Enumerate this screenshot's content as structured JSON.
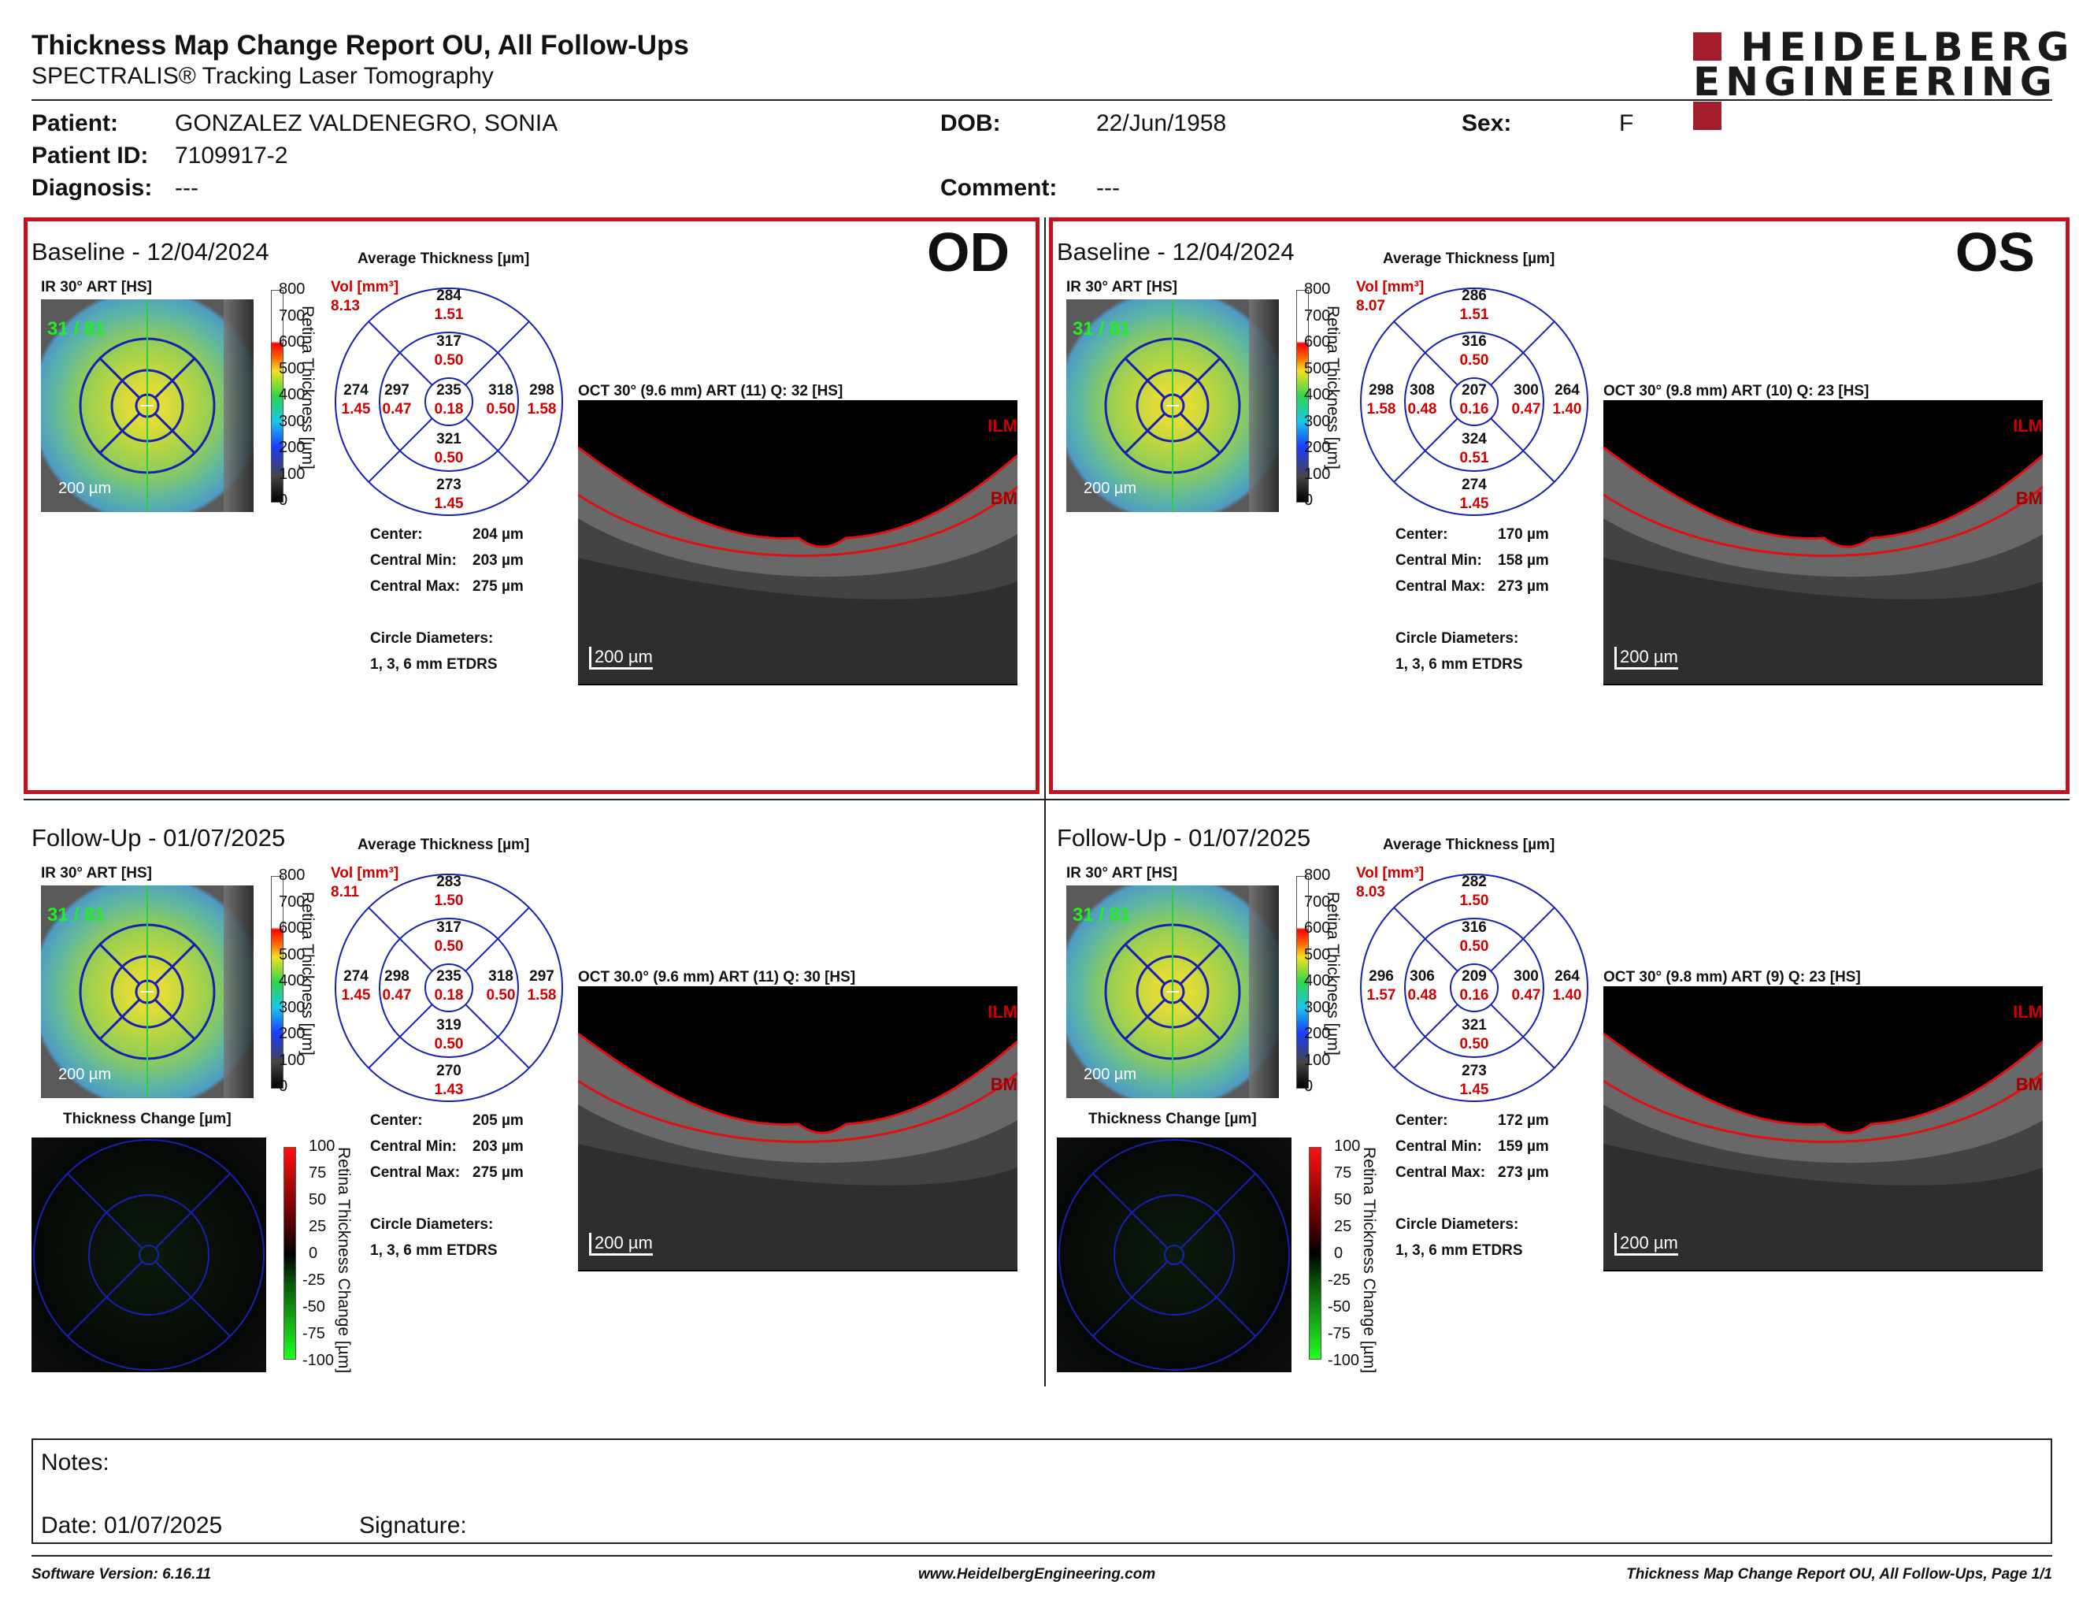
{
  "header": {
    "title": "Thickness Map Change Report OU, All Follow-Ups",
    "subtitle": "SPECTRALIS® Tracking Laser Tomography",
    "logo_line1": "HEIDELBERG",
    "logo_line2": "ENGINEERING"
  },
  "patient": {
    "patient_label": "Patient:",
    "patient_name": "GONZALEZ VALDENEGRO, SONIA",
    "id_label": "Patient ID:",
    "patient_id": "7109917-2",
    "diagnosis_label": "Diagnosis:",
    "diagnosis": "---",
    "dob_label": "DOB:",
    "dob": "22/Jun/1958",
    "sex_label": "Sex:",
    "sex": "F",
    "comment_label": "Comment:",
    "comment": "---"
  },
  "labels": {
    "ir": "IR 30° ART [HS]",
    "avg_thickness": "Average Thickness [µm]",
    "vol": "Vol [mm³]",
    "scale_title": "Retina Thickness [µm]",
    "change_title": "Thickness Change [µm]",
    "change_scale_title": "Retina Thickness Change [µm]",
    "ir_scale": "200 µm",
    "oct_scale": "200 µm",
    "ilm": "ILM",
    "bm": "BM",
    "center_label": "Center:",
    "central_min_label": "Central Min:",
    "central_max_label": "Central Max:",
    "circle_label": "Circle Diameters:",
    "circle_value": "1, 3, 6 mm ETDRS",
    "ir_overlay": "31 / 81"
  },
  "scales": {
    "thickness_ticks": [
      "800",
      "700",
      "600",
      "500",
      "400",
      "300",
      "200",
      "100",
      "0"
    ],
    "change_ticks": [
      "100",
      "75",
      "50",
      "25",
      "0",
      "-25",
      "-50",
      "-75",
      "-100"
    ]
  },
  "panels": {
    "od_baseline": {
      "title": "Baseline - 12/04/2024",
      "eye": "OD",
      "vol_total": "8.13",
      "sup_outer": "284",
      "sup_outer_vol": "1.51",
      "sup_inner": "317",
      "sup_inner_vol": "0.50",
      "temp_outer": "274",
      "temp_outer_vol": "1.45",
      "temp_inner": "297",
      "temp_inner_vol": "0.47",
      "center": "235",
      "center_vol": "0.18",
      "nas_inner": "318",
      "nas_inner_vol": "0.50",
      "nas_outer": "298",
      "nas_outer_vol": "1.58",
      "inf_inner": "321",
      "inf_inner_vol": "0.50",
      "inf_outer": "273",
      "inf_outer_vol": "1.45",
      "center_um": "204 µm",
      "central_min": "203 µm",
      "central_max": "275 µm",
      "oct_label": "OCT 30° (9.6 mm) ART (11) Q: 32 [HS]"
    },
    "os_baseline": {
      "title": "Baseline - 12/04/2024",
      "eye": "OS",
      "vol_total": "8.07",
      "sup_outer": "286",
      "sup_outer_vol": "1.51",
      "sup_inner": "316",
      "sup_inner_vol": "0.50",
      "temp_outer": "298",
      "temp_outer_vol": "1.58",
      "temp_inner": "308",
      "temp_inner_vol": "0.48",
      "center": "207",
      "center_vol": "0.16",
      "nas_inner": "300",
      "nas_inner_vol": "0.47",
      "nas_outer": "264",
      "nas_outer_vol": "1.40",
      "inf_inner": "324",
      "inf_inner_vol": "0.51",
      "inf_outer": "274",
      "inf_outer_vol": "1.45",
      "center_um": "170 µm",
      "central_min": "158 µm",
      "central_max": "273 µm",
      "oct_label": "OCT 30° (9.8 mm) ART (10) Q: 23 [HS]"
    },
    "od_follow": {
      "title": "Follow-Up - 01/07/2025",
      "vol_total": "8.11",
      "sup_outer": "283",
      "sup_outer_vol": "1.50",
      "sup_inner": "317",
      "sup_inner_vol": "0.50",
      "temp_outer": "274",
      "temp_outer_vol": "1.45",
      "temp_inner": "298",
      "temp_inner_vol": "0.47",
      "center": "235",
      "center_vol": "0.18",
      "nas_inner": "318",
      "nas_inner_vol": "0.50",
      "nas_outer": "297",
      "nas_outer_vol": "1.58",
      "inf_inner": "319",
      "inf_inner_vol": "0.50",
      "inf_outer": "270",
      "inf_outer_vol": "1.43",
      "center_um": "205 µm",
      "central_min": "203 µm",
      "central_max": "275 µm",
      "oct_label": "OCT 30.0° (9.6 mm) ART (11) Q: 30 [HS]"
    },
    "os_follow": {
      "title": "Follow-Up - 01/07/2025",
      "vol_total": "8.03",
      "sup_outer": "282",
      "sup_outer_vol": "1.50",
      "sup_inner": "316",
      "sup_inner_vol": "0.50",
      "temp_outer": "296",
      "temp_outer_vol": "1.57",
      "temp_inner": "306",
      "temp_inner_vol": "0.48",
      "center": "209",
      "center_vol": "0.16",
      "nas_inner": "300",
      "nas_inner_vol": "0.47",
      "nas_outer": "264",
      "nas_outer_vol": "1.40",
      "inf_inner": "321",
      "inf_inner_vol": "0.50",
      "inf_outer": "273",
      "inf_outer_vol": "1.45",
      "center_um": "172 µm",
      "central_min": "159 µm",
      "central_max": "273 µm",
      "oct_label": "OCT 30° (9.8 mm) ART (9) Q: 23 [HS]"
    }
  },
  "notes": {
    "notes_label": "Notes:",
    "date_label": "Date: 01/07/2025",
    "signature_label": "Signature:"
  },
  "footer": {
    "software": "Software Version: 6.16.11",
    "website": "www.HeidelbergEngineering.com",
    "page": "Thickness Map Change Report OU, All Follow-Ups, Page 1/1"
  },
  "colors": {
    "frame_red": "#c0121f",
    "value_red": "#d00000",
    "logo_red": "#a41d2b"
  }
}
